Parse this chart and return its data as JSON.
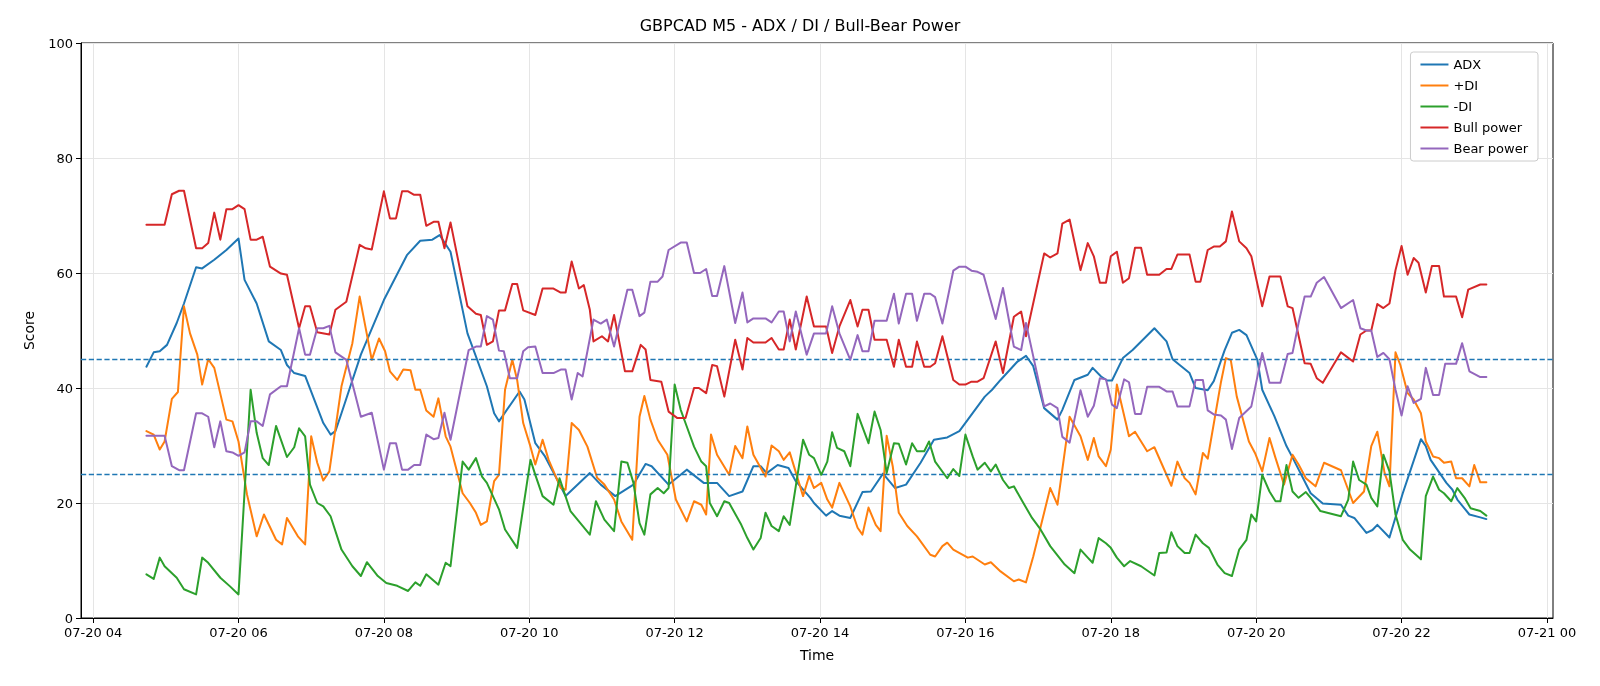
{
  "chart_data": {
    "type": "line",
    "title": "GBPCAD M5 - ADX / DI / Bull-Bear Power",
    "xlabel": "Time",
    "ylabel": "Score",
    "xlim": [
      "--07-20T03:50",
      "--07-21T00:05"
    ],
    "xticks": [
      {
        "value": "--07-20T04:00",
        "label": "07-20 04"
      },
      {
        "value": "--07-20T06:00",
        "label": "07-20 06"
      },
      {
        "value": "--07-20T08:00",
        "label": "07-20 08"
      },
      {
        "value": "--07-20T10:00",
        "label": "07-20 10"
      },
      {
        "value": "--07-20T12:00",
        "label": "07-20 12"
      },
      {
        "value": "--07-20T14:00",
        "label": "07-20 14"
      },
      {
        "value": "--07-20T16:00",
        "label": "07-20 16"
      },
      {
        "value": "--07-20T18:00",
        "label": "07-20 18"
      },
      {
        "value": "--07-20T20:00",
        "label": "07-20 20"
      },
      {
        "value": "--07-20T22:00",
        "label": "07-20 22"
      },
      {
        "value": "--07-21T00:00",
        "label": "07-21 00"
      }
    ],
    "ylim": [
      0,
      100
    ],
    "yticks": [
      0,
      20,
      40,
      60,
      80,
      100
    ],
    "grid": true,
    "legend": "top right",
    "marker": "none",
    "line_style": "solid",
    "ref_lines": [
      {
        "axis": "y",
        "value": 45,
        "color": "#1f77b4",
        "line_style": "dashed"
      },
      {
        "axis": "y",
        "value": 25,
        "color": "#1f77b4",
        "line_style": "dashed"
      }
    ],
    "series": [
      {
        "name": "ADX",
        "color": "#1f77b4",
        "x": [
          "--07-20T04:44",
          "--07-20T04:50",
          "--07-20T04:55",
          "--07-20T05:01",
          "--07-20T05:09",
          "--07-20T05:15",
          "--07-20T05:25",
          "--07-20T05:30",
          "--07-20T05:40",
          "--07-20T05:50",
          "--07-20T06:00",
          "--07-20T06:05",
          "--07-20T06:15",
          "--07-20T06:25",
          "--07-20T06:35",
          "--07-20T06:40",
          "--07-20T06:46",
          "--07-20T06:55",
          "--07-20T07:10",
          "--07-20T07:16",
          "--07-20T07:20",
          "--07-20T07:25",
          "--07-20T07:41",
          "--07-20T08:00",
          "--07-20T08:19",
          "--07-20T08:30",
          "--07-20T08:40",
          "--07-20T08:46",
          "--07-20T08:55",
          "--07-20T09:09",
          "--07-20T09:25",
          "--07-20T09:31",
          "--07-20T09:35",
          "--07-20T09:52",
          "--07-20T09:56",
          "--07-20T10:05",
          "--07-20T10:13",
          "--07-20T10:23",
          "--07-20T10:30",
          "--07-20T10:40",
          "--07-20T10:50",
          "--07-20T10:59",
          "--07-20T11:11",
          "--07-20T11:26",
          "--07-20T11:36",
          "--07-20T11:41",
          "--07-20T11:55",
          "--07-20T12:10",
          "--07-20T12:24",
          "--07-20T12:35",
          "--07-20T12:45",
          "--07-20T12:56",
          "--07-20T13:05",
          "--07-20T13:11",
          "--07-20T13:16",
          "--07-20T13:25",
          "--07-20T13:34",
          "--07-20T13:40",
          "--07-20T13:52",
          "--07-20T13:55",
          "--07-20T14:05",
          "--07-20T14:10",
          "--07-20T14:16",
          "--07-20T14:25",
          "--07-20T14:35",
          "--07-20T14:42",
          "--07-20T14:52",
          "--07-20T15:02",
          "--07-20T15:11",
          "--07-20T15:23",
          "--07-20T15:34",
          "--07-20T15:45",
          "--07-20T15:55",
          "--07-20T16:02",
          "--07-20T16:16",
          "--07-20T16:22",
          "--07-20T16:29",
          "--07-20T16:43",
          "--07-20T16:50",
          "--07-20T16:56",
          "--07-20T17:05",
          "--07-20T17:16",
          "--07-20T17:20",
          "--07-20T17:30",
          "--07-20T17:41",
          "--07-20T17:45",
          "--07-20T17:52",
          "--07-20T17:57",
          "--07-20T18:01",
          "--07-20T18:10",
          "--07-20T18:18",
          "--07-20T18:36",
          "--07-20T18:46",
          "--07-20T18:51",
          "--07-20T19:05",
          "--07-20T19:10",
          "--07-20T19:20",
          "--07-20T19:25",
          "--07-20T19:34",
          "--07-20T19:40",
          "--07-20T19:46",
          "--07-20T19:52",
          "--07-20T20:01",
          "--07-20T20:05",
          "--07-20T20:15",
          "--07-20T20:25",
          "--07-20T20:31",
          "--07-20T20:45",
          "--07-20T20:55",
          "--07-20T21:10",
          "--07-20T21:16",
          "--07-20T21:21",
          "--07-20T21:31",
          "--07-20T21:36",
          "--07-20T21:40",
          "--07-20T21:50",
          "--07-20T22:01",
          "--07-20T22:16",
          "--07-20T22:20",
          "--07-20T22:24",
          "--07-20T22:37",
          "--07-20T22:42",
          "--07-20T22:46",
          "--07-20T22:56",
          "--07-20T23:05",
          "--07-20T23:10"
        ],
        "values": [
          43.7,
          46.2,
          46.4,
          47.5,
          51.3,
          54.7,
          61.0,
          60.8,
          62.3,
          64.0,
          66.0,
          58.8,
          54.7,
          48.1,
          46.6,
          44.0,
          42.6,
          42.1,
          33.9,
          31.9,
          32.5,
          35.6,
          45.8,
          55.3,
          63.1,
          65.6,
          65.8,
          66.6,
          63.7,
          49.5,
          40.3,
          35.6,
          34.2,
          39.4,
          38.0,
          30.4,
          28.1,
          24.1,
          21.2,
          23.2,
          25.2,
          23.2,
          21.2,
          23.2,
          26.8,
          26.4,
          23.2,
          25.8,
          23.5,
          23.5,
          21.2,
          22.0,
          26.4,
          26.4,
          25.2,
          26.6,
          26.1,
          23.8,
          20.9,
          20.0,
          17.8,
          18.6,
          17.8,
          17.4,
          21.9,
          22.0,
          25.1,
          22.6,
          23.2,
          27.0,
          31.0,
          31.4,
          32.5,
          34.5,
          38.5,
          39.7,
          41.4,
          44.6,
          45.6,
          43.8,
          36.5,
          34.5,
          36.2,
          41.4,
          42.3,
          43.5,
          42.0,
          41.3,
          41.3,
          45.2,
          46.6,
          50.4,
          48.1,
          45.0,
          42.6,
          40.0,
          39.6,
          41.2,
          46.6,
          49.6,
          50.1,
          49.2,
          44.9,
          39.7,
          35.1,
          29.9,
          27.5,
          21.7,
          19.9,
          19.7,
          17.8,
          17.4,
          14.8,
          15.3,
          16.2,
          14.0,
          21.7,
          31.1,
          29.9,
          27.5,
          23.5,
          22.3,
          20.6,
          18.0,
          17.5,
          17.2
        ]
      },
      {
        "name": "+DI",
        "color": "#ff7f0e",
        "x": [
          "--07-20T04:44",
          "--07-20T04:50",
          "--07-20T04:55",
          "--07-20T04:59",
          "--07-20T05:05",
          "--07-20T05:10",
          "--07-20T05:15",
          "--07-20T05:20",
          "--07-20T05:26",
          "--07-20T05:30",
          "--07-20T05:35",
          "--07-20T05:40",
          "--07-20T05:50",
          "--07-20T05:55",
          "--07-20T06:00",
          "--07-20T06:07",
          "--07-20T06:15",
          "--07-20T06:21",
          "--07-20T06:31",
          "--07-20T06:36",
          "--07-20T06:40",
          "--07-20T06:49",
          "--07-20T06:55",
          "--07-20T07:00",
          "--07-20T07:05",
          "--07-20T07:10",
          "--07-20T07:15",
          "--07-20T07:25",
          "--07-20T07:34",
          "--07-20T07:40",
          "--07-20T07:50",
          "--07-20T07:56",
          "--07-20T08:01",
          "--07-20T08:05",
          "--07-20T08:11",
          "--07-20T08:16",
          "--07-20T08:22",
          "--07-20T08:26",
          "--07-20T08:30",
          "--07-20T08:35",
          "--07-20T08:41",
          "--07-20T08:45",
          "--07-20T08:51",
          "--07-20T08:55",
          "--07-20T09:05",
          "--07-20T09:11",
          "--07-20T09:16",
          "--07-20T09:20",
          "--07-20T09:25",
          "--07-20T09:31",
          "--07-20T09:35",
          "--07-20T09:40",
          "--07-20T09:46",
          "--07-20T09:50",
          "--07-20T09:55",
          "--07-20T10:01",
          "--07-20T10:05",
          "--07-20T10:11",
          "--07-20T10:16",
          "--07-20T10:26",
          "--07-20T10:30",
          "--07-20T10:35",
          "--07-20T10:41",
          "--07-20T10:48",
          "--07-20T10:56",
          "--07-20T11:02",
          "--07-20T11:10",
          "--07-20T11:16",
          "--07-20T11:25",
          "--07-20T11:31",
          "--07-20T11:35",
          "--07-20T11:40",
          "--07-20T11:46",
          "--07-20T11:54",
          "--07-20T12:01",
          "--07-20T12:10",
          "--07-20T12:16",
          "--07-20T12:22",
          "--07-20T12:26",
          "--07-20T12:30",
          "--07-20T12:35",
          "--07-20T12:45",
          "--07-20T12:50",
          "--07-20T12:56",
          "--07-20T13:00",
          "--07-20T13:05",
          "--07-20T13:15",
          "--07-20T13:20",
          "--07-20T13:26",
          "--07-20T13:30",
          "--07-20T13:35",
          "--07-20T13:46",
          "--07-20T13:51",
          "--07-20T13:55",
          "--07-20T14:01",
          "--07-20T14:06",
          "--07-20T14:10",
          "--07-20T14:16",
          "--07-20T14:25",
          "--07-20T14:31",
          "--07-20T14:35",
          "--07-20T14:40",
          "--07-20T14:46",
          "--07-20T14:50",
          "--07-20T14:55",
          "--07-20T15:00",
          "--07-20T15:05",
          "--07-20T15:12",
          "--07-20T15:20",
          "--07-20T15:31",
          "--07-20T15:35",
          "--07-20T15:41",
          "--07-20T15:45",
          "--07-20T15:50",
          "--07-20T16:02",
          "--07-20T16:06",
          "--07-20T16:16",
          "--07-20T16:21",
          "--07-20T16:29",
          "--07-20T16:40",
          "--07-20T16:44",
          "--07-20T16:50",
          "--07-20T16:56",
          "--07-20T17:10",
          "--07-20T17:16",
          "--07-20T17:26",
          "--07-20T17:35",
          "--07-20T17:41",
          "--07-20T17:46",
          "--07-20T17:50",
          "--07-20T17:56",
          "--07-20T18:00",
          "--07-20T18:05",
          "--07-20T18:15",
          "--07-20T18:20",
          "--07-20T18:30",
          "--07-20T18:36",
          "--07-20T18:50",
          "--07-20T18:55",
          "--07-20T19:01",
          "--07-20T19:05",
          "--07-20T19:10",
          "--07-20T19:16",
          "--07-20T19:20",
          "--07-20T19:31",
          "--07-20T19:35",
          "--07-20T19:39",
          "--07-20T19:44",
          "--07-20T19:54",
          "--07-20T19:59",
          "--07-20T20:05",
          "--07-20T20:11",
          "--07-20T20:16",
          "--07-20T20:23",
          "--07-20T20:30",
          "--07-20T20:35",
          "--07-20T20:41",
          "--07-20T20:49",
          "--07-20T20:56",
          "--07-20T21:10",
          "--07-20T21:20",
          "--07-20T21:29",
          "--07-20T21:35",
          "--07-20T21:40",
          "--07-20T21:46",
          "--07-20T21:50",
          "--07-20T21:55",
          "--07-20T21:59",
          "--07-20T22:05",
          "--07-20T22:10",
          "--07-20T22:16",
          "--07-20T22:20",
          "--07-20T22:26",
          "--07-20T22:31",
          "--07-20T22:35",
          "--07-20T22:41",
          "--07-20T22:45",
          "--07-20T22:50",
          "--07-20T22:56",
          "--07-20T23:00",
          "--07-20T23:05",
          "--07-20T23:10"
        ],
        "values": [
          32.5,
          31.9,
          29.3,
          30.7,
          38.1,
          39.3,
          54.2,
          49.5,
          45.8,
          40.6,
          45.0,
          43.5,
          34.5,
          34.2,
          30.7,
          21.5,
          14.2,
          18.0,
          13.6,
          12.8,
          17.4,
          14.2,
          12.8,
          31.6,
          27.0,
          23.9,
          25.5,
          40.3,
          47.8,
          55.9,
          44.9,
          48.6,
          46.4,
          42.9,
          41.4,
          43.2,
          43.1,
          39.7,
          39.7,
          36.1,
          35.0,
          38.2,
          31.6,
          29.8,
          21.7,
          20.0,
          18.3,
          16.2,
          16.8,
          23.8,
          24.9,
          39.7,
          44.9,
          41.4,
          33.9,
          29.8,
          26.7,
          31.0,
          27.5,
          22.6,
          22.3,
          33.9,
          32.7,
          29.8,
          24.4,
          23.2,
          20.6,
          16.8,
          13.6,
          35.0,
          38.6,
          34.5,
          31.0,
          28.4,
          20.6,
          16.8,
          20.3,
          19.7,
          18.0,
          31.9,
          28.4,
          24.9,
          29.9,
          27.8,
          33.3,
          28.4,
          24.6,
          30.0,
          29.0,
          27.5,
          28.8,
          21.2,
          24.7,
          22.6,
          23.5,
          20.6,
          19.2,
          23.5,
          19.4,
          15.7,
          14.5,
          19.2,
          16.2,
          15.1,
          31.7,
          26.4,
          18.3,
          16.0,
          14.2,
          11.0,
          10.7,
          12.5,
          13.1,
          11.9,
          10.5,
          10.7,
          9.3,
          9.7,
          8.1,
          6.4,
          6.7,
          6.2,
          10.7,
          22.6,
          19.7,
          35.0,
          31.6,
          27.5,
          31.3,
          28.1,
          26.4,
          29.3,
          40.6,
          31.6,
          32.4,
          29.0,
          29.7,
          23.0,
          27.2,
          24.3,
          23.5,
          21.5,
          28.7,
          27.7,
          41.1,
          45.2,
          44.9,
          38.5,
          30.7,
          28.7,
          25.5,
          31.3,
          27.8,
          23.2,
          28.4,
          26.7,
          24.3,
          22.9,
          27.0,
          25.7,
          20.0,
          22.0,
          29.9,
          32.4,
          25.2,
          22.9,
          46.2,
          44.0,
          39.1,
          38.0,
          35.6,
          30.7,
          28.1,
          27.8,
          27.0,
          27.2,
          24.3,
          24.3,
          22.9,
          26.6,
          23.6,
          23.6
        ]
      },
      {
        "name": "-DI",
        "color": "#2ca02c",
        "x": [
          "--07-20T04:44",
          "--07-20T04:50",
          "--07-20T04:55",
          "--07-20T04:59",
          "--07-20T05:09",
          "--07-20T05:15",
          "--07-20T05:25",
          "--07-20T05:30",
          "--07-20T05:35",
          "--07-20T05:45",
          "--07-20T05:53",
          "--07-20T06:00",
          "--07-20T06:10",
          "--07-20T06:15",
          "--07-20T06:20",
          "--07-20T06:25",
          "--07-20T06:31",
          "--07-20T06:40",
          "--07-20T06:46",
          "--07-20T06:50",
          "--07-20T06:55",
          "--07-20T06:59",
          "--07-20T07:05",
          "--07-20T07:10",
          "--07-20T07:16",
          "--07-20T07:25",
          "--07-20T07:34",
          "--07-20T07:41",
          "--07-20T07:46",
          "--07-20T07:55",
          "--07-20T08:02",
          "--07-20T08:11",
          "--07-20T08:20",
          "--07-20T08:26",
          "--07-20T08:30",
          "--07-20T08:35",
          "--07-20T08:45",
          "--07-20T08:51",
          "--07-20T08:55",
          "--07-20T09:05",
          "--07-20T09:10",
          "--07-20T09:16",
          "--07-20T09:21",
          "--07-20T09:25",
          "--07-20T09:35",
          "--07-20T09:40",
          "--07-20T09:50",
          "--07-20T10:01",
          "--07-20T10:05",
          "--07-20T10:11",
          "--07-20T10:20",
          "--07-20T10:25",
          "--07-20T10:34",
          "--07-20T10:50",
          "--07-20T10:55",
          "--07-20T11:02",
          "--07-20T11:10",
          "--07-20T11:16",
          "--07-20T11:21",
          "--07-20T11:26",
          "--07-20T11:31",
          "--07-20T11:35",
          "--07-20T11:40",
          "--07-20T11:46",
          "--07-20T11:51",
          "--07-20T11:55",
          "--07-20T12:00",
          "--07-20T12:05",
          "--07-20T12:10",
          "--07-20T12:16",
          "--07-20T12:22",
          "--07-20T12:26",
          "--07-20T12:29",
          "--07-20T12:35",
          "--07-20T12:41",
          "--07-20T12:45",
          "--07-20T12:55",
          "--07-20T13:00",
          "--07-20T13:05",
          "--07-20T13:11",
          "--07-20T13:15",
          "--07-20T13:20",
          "--07-20T13:26",
          "--07-20T13:30",
          "--07-20T13:35",
          "--07-20T13:46",
          "--07-20T13:51",
          "--07-20T13:55",
          "--07-20T14:01",
          "--07-20T14:06",
          "--07-20T14:10",
          "--07-20T14:14",
          "--07-20T14:20",
          "--07-20T14:25",
          "--07-20T14:31",
          "--07-20T14:40",
          "--07-20T14:45",
          "--07-20T14:50",
          "--07-20T14:55",
          "--07-20T15:01",
          "--07-20T15:05",
          "--07-20T15:11",
          "--07-20T15:16",
          "--07-20T15:20",
          "--07-20T15:26",
          "--07-20T15:30",
          "--07-20T15:35",
          "--07-20T15:45",
          "--07-20T15:50",
          "--07-20T15:55",
          "--07-20T16:00",
          "--07-20T16:06",
          "--07-20T16:10",
          "--07-20T16:16",
          "--07-20T16:21",
          "--07-20T16:25",
          "--07-20T16:31",
          "--07-20T16:36",
          "--07-20T16:40",
          "--07-20T16:47",
          "--07-20T16:55",
          "--07-20T17:02",
          "--07-20T17:10",
          "--07-20T17:22",
          "--07-20T17:30",
          "--07-20T17:35",
          "--07-20T17:41",
          "--07-20T17:45",
          "--07-20T17:50",
          "--07-20T17:56",
          "--07-20T18:00",
          "--07-20T18:05",
          "--07-20T18:11",
          "--07-20T18:16",
          "--07-20T18:25",
          "--07-20T18:36",
          "--07-20T18:40",
          "--07-20T18:46",
          "--07-20T18:50",
          "--07-20T18:55",
          "--07-20T19:01",
          "--07-20T19:05",
          "--07-20T19:10",
          "--07-20T19:16",
          "--07-20T19:21",
          "--07-20T19:28",
          "--07-20T19:34",
          "--07-20T19:40",
          "--07-20T19:46",
          "--07-20T19:52",
          "--07-20T19:56",
          "--07-20T20:00",
          "--07-20T20:05",
          "--07-20T20:11",
          "--07-20T20:16",
          "--07-20T20:20",
          "--07-20T20:25",
          "--07-20T20:30",
          "--07-20T20:35",
          "--07-20T20:41",
          "--07-20T20:45",
          "--07-20T20:53",
          "--07-20T21:10",
          "--07-20T21:16",
          "--07-20T21:20",
          "--07-20T21:25",
          "--07-20T21:31",
          "--07-20T21:35",
          "--07-20T21:40",
          "--07-20T21:45",
          "--07-20T21:50",
          "--07-20T21:55",
          "--07-20T22:01",
          "--07-20T22:07",
          "--07-20T22:16",
          "--07-20T22:20",
          "--07-20T22:26",
          "--07-20T22:31",
          "--07-20T22:35",
          "--07-20T22:41",
          "--07-20T22:46",
          "--07-20T22:52",
          "--07-20T22:57",
          "--07-20T23:05",
          "--07-20T23:10"
        ],
        "values": [
          7.6,
          6.8,
          10.5,
          9.0,
          7.0,
          5.0,
          4.1,
          10.5,
          9.6,
          7.0,
          5.5,
          4.1,
          39.7,
          32.2,
          27.8,
          26.6,
          33.4,
          28.0,
          29.7,
          33.0,
          31.6,
          23.2,
          20.0,
          19.4,
          17.7,
          11.9,
          9.0,
          7.3,
          9.7,
          7.3,
          6.1,
          5.6,
          4.7,
          6.2,
          5.6,
          7.6,
          5.8,
          9.6,
          9.0,
          27.2,
          25.8,
          27.8,
          24.6,
          23.5,
          18.9,
          15.4,
          12.2,
          27.5,
          24.9,
          21.2,
          19.7,
          24.3,
          18.6,
          14.5,
          20.3,
          17.1,
          15.1,
          27.2,
          27.0,
          23.5,
          16.5,
          14.5,
          21.5,
          22.6,
          21.7,
          22.6,
          40.6,
          36.2,
          33.3,
          29.8,
          27.2,
          26.4,
          20.0,
          17.7,
          20.3,
          20.0,
          16.2,
          13.9,
          11.9,
          13.9,
          18.3,
          16.0,
          15.1,
          17.7,
          16.2,
          31.0,
          28.4,
          27.8,
          24.9,
          27.2,
          32.3,
          29.6,
          29.0,
          26.4,
          35.5,
          30.4,
          35.9,
          32.7,
          25.2,
          30.4,
          30.3,
          26.7,
          30.4,
          29.0,
          29.0,
          30.7,
          27.2,
          24.3,
          25.9,
          24.7,
          31.9,
          28.1,
          25.8,
          27.0,
          25.5,
          26.7,
          24.0,
          22.6,
          22.9,
          20.3,
          17.4,
          15.4,
          12.5,
          9.3,
          7.8,
          11.9,
          10.5,
          9.6,
          13.9,
          13.0,
          12.2,
          10.5,
          9.0,
          9.9,
          9.0,
          7.4,
          11.3,
          11.4,
          14.9,
          12.5,
          11.3,
          11.3,
          14.5,
          13.0,
          12.2,
          9.3,
          7.8,
          7.3,
          11.9,
          13.6,
          18.0,
          16.8,
          24.9,
          22.0,
          20.3,
          20.3,
          26.6,
          22.0,
          20.9,
          21.9,
          20.9,
          18.6,
          17.7,
          20.6,
          27.2,
          24.0,
          23.2,
          20.9,
          19.4,
          28.4,
          25.5,
          18.0,
          13.6,
          11.9,
          10.2,
          21.2,
          24.6,
          22.3,
          21.7,
          20.3,
          22.6,
          20.9,
          19.1,
          18.6,
          17.8
        ]
      },
      {
        "name": "Bull power",
        "color": "#d62728",
        "x": [
          "--07-20T04:44",
          "--07-20T04:59",
          "--07-20T05:05",
          "--07-20T05:11",
          "--07-20T05:15",
          "--07-20T05:25",
          "--07-20T05:30",
          "--07-20T05:35",
          "--07-20T05:40",
          "--07-20T05:45",
          "--07-20T05:50",
          "--07-20T05:55",
          "--07-20T06:00",
          "--07-20T06:05",
          "--07-20T06:10",
          "--07-20T06:15",
          "--07-20T06:20",
          "--07-20T06:26",
          "--07-20T06:35",
          "--07-20T06:40",
          "--07-20T06:50",
          "--07-20T06:55",
          "--07-20T06:59",
          "--07-20T07:05",
          "--07-20T07:15",
          "--07-20T07:20",
          "--07-20T07:29",
          "--07-20T07:40",
          "--07-20T07:45",
          "--07-20T07:50",
          "--07-20T08:00",
          "--07-20T08:05",
          "--07-20T08:10",
          "--07-20T08:15",
          "--07-20T08:20",
          "--07-20T08:25",
          "--07-20T08:30",
          "--07-20T08:35",
          "--07-20T08:41",
          "--07-20T08:45",
          "--07-20T08:50",
          "--07-20T08:55",
          "--07-20T09:09",
          "--07-20T09:16",
          "--07-20T09:20",
          "--07-20T09:25",
          "--07-20T09:30",
          "--07-20T09:35",
          "--07-20T09:40",
          "--07-20T09:46",
          "--07-20T09:50",
          "--07-20T09:55",
          "--07-20T10:05",
          "--07-20T10:11",
          "--07-20T10:20",
          "--07-20T10:26",
          "--07-20T10:30",
          "--07-20T10:35",
          "--07-20T10:41",
          "--07-20T10:45",
          "--07-20T10:50",
          "--07-20T10:53",
          "--07-20T11:00",
          "--07-20T11:05",
          "--07-20T11:10",
          "--07-20T11:19",
          "--07-20T11:25",
          "--07-20T11:32",
          "--07-20T11:36",
          "--07-20T11:40",
          "--07-20T11:49",
          "--07-20T11:55",
          "--07-20T12:02",
          "--07-20T12:09",
          "--07-20T12:16",
          "--07-20T12:20",
          "--07-20T12:26",
          "--07-20T12:31",
          "--07-20T12:35",
          "--07-20T12:41",
          "--07-20T12:50",
          "--07-20T12:56",
          "--07-20T13:00",
          "--07-20T13:05",
          "--07-20T13:15",
          "--07-20T13:20",
          "--07-20T13:26",
          "--07-20T13:30",
          "--07-20T13:35",
          "--07-20T13:40",
          "--07-20T13:49",
          "--07-20T13:55",
          "--07-20T14:05",
          "--07-20T14:10",
          "--07-20T14:16",
          "--07-20T14:25",
          "--07-20T14:31",
          "--07-20T14:35",
          "--07-20T14:40",
          "--07-20T14:45",
          "--07-20T14:55",
          "--07-20T15:01",
          "--07-20T15:05",
          "--07-20T15:11",
          "--07-20T15:16",
          "--07-20T15:20",
          "--07-20T15:26",
          "--07-20T15:31",
          "--07-20T15:35",
          "--07-20T15:41",
          "--07-20T15:50",
          "--07-20T15:55",
          "--07-20T16:00",
          "--07-20T16:05",
          "--07-20T16:10",
          "--07-20T16:15",
          "--07-20T16:25",
          "--07-20T16:31",
          "--07-20T16:40",
          "--07-20T16:46",
          "--07-20T16:50",
          "--07-20T17:05",
          "--07-20T17:10",
          "--07-20T17:16",
          "--07-20T17:20",
          "--07-20T17:26",
          "--07-20T17:35",
          "--07-20T17:41",
          "--07-20T17:46",
          "--07-20T17:51",
          "--07-20T17:56",
          "--07-20T18:00",
          "--07-20T18:05",
          "--07-20T18:10",
          "--07-20T18:15",
          "--07-20T18:20",
          "--07-20T18:25",
          "--07-20T18:30",
          "--07-20T18:40",
          "--07-20T18:46",
          "--07-20T18:50",
          "--07-20T18:55",
          "--07-20T19:05",
          "--07-20T19:10",
          "--07-20T19:14",
          "--07-20T19:20",
          "--07-20T19:25",
          "--07-20T19:30",
          "--07-20T19:35",
          "--07-20T19:40",
          "--07-20T19:46",
          "--07-20T19:52",
          "--07-20T19:56",
          "--07-20T20:05",
          "--07-20T20:11",
          "--07-20T20:20",
          "--07-20T20:26",
          "--07-20T20:30",
          "--07-20T20:40",
          "--07-20T20:45",
          "--07-20T20:50",
          "--07-20T20:55",
          "--07-20T21:10",
          "--07-20T21:20",
          "--07-20T21:26",
          "--07-20T21:31",
          "--07-20T21:35",
          "--07-20T21:40",
          "--07-20T21:45",
          "--07-20T21:50",
          "--07-20T21:55",
          "--07-20T22:00",
          "--07-20T22:05",
          "--07-20T22:10",
          "--07-20T22:14",
          "--07-20T22:20",
          "--07-20T22:25",
          "--07-20T22:31",
          "--07-20T22:35",
          "--07-20T22:45",
          "--07-20T22:50",
          "--07-20T22:55",
          "--07-20T23:05",
          "--07-20T23:10"
        ],
        "values": [
          68.4,
          68.4,
          73.7,
          74.3,
          74.3,
          64.3,
          64.3,
          65.2,
          70.5,
          65.8,
          71.1,
          71.1,
          71.8,
          71.1,
          65.8,
          65.8,
          66.3,
          61.1,
          59.9,
          59.7,
          50.4,
          54.2,
          54.2,
          49.7,
          49.3,
          53.6,
          55.0,
          64.9,
          64.3,
          64.1,
          74.2,
          69.5,
          69.5,
          74.2,
          74.2,
          73.6,
          73.6,
          68.2,
          68.9,
          68.9,
          64.3,
          68.8,
          54.2,
          52.9,
          52.7,
          47.5,
          48.1,
          53.5,
          53.5,
          58.1,
          58.1,
          53.5,
          52.7,
          57.3,
          57.3,
          56.6,
          56.6,
          62.0,
          57.3,
          57.9,
          53.6,
          48.1,
          49.0,
          48.1,
          52.7,
          42.9,
          42.9,
          47.5,
          46.7,
          41.4,
          41.1,
          35.9,
          34.8,
          34.8,
          40.0,
          40.0,
          39.1,
          44.0,
          43.8,
          38.5,
          48.4,
          43.2,
          48.7,
          47.9,
          47.9,
          48.7,
          46.7,
          46.7,
          51.9,
          46.7,
          55.9,
          50.7,
          50.7,
          46.1,
          50.7,
          55.3,
          50.7,
          53.6,
          53.6,
          48.4,
          48.4,
          43.7,
          48.4,
          43.7,
          43.7,
          48.1,
          43.7,
          43.7,
          44.3,
          49.0,
          41.4,
          40.6,
          40.6,
          41.1,
          41.1,
          41.7,
          48.1,
          42.6,
          52.4,
          53.3,
          49.0,
          63.4,
          62.7,
          63.4,
          68.6,
          69.3,
          60.5,
          65.2,
          62.9,
          58.3,
          58.3,
          62.9,
          63.7,
          58.3,
          59.1,
          64.4,
          64.4,
          59.7,
          59.7,
          60.7,
          60.7,
          63.2,
          63.2,
          58.5,
          58.5,
          64.0,
          64.6,
          64.6,
          65.5,
          70.7,
          65.5,
          64.3,
          62.9,
          54.2,
          59.4,
          59.4,
          54.2,
          53.9,
          44.3,
          44.2,
          41.7,
          40.9,
          46.2,
          44.6,
          49.3,
          50.0,
          50.0,
          54.6,
          53.9,
          54.7,
          60.5,
          64.7,
          59.7,
          62.6,
          61.8,
          56.6,
          61.2,
          61.2,
          55.9,
          55.9,
          52.3,
          57.1,
          58.0,
          58.0
        ]
      },
      {
        "name": "Bear power",
        "color": "#9467bd",
        "x": [
          "--07-20T04:44",
          "--07-20T04:59",
          "--07-20T05:05",
          "--07-20T05:11",
          "--07-20T05:15",
          "--07-20T05:25",
          "--07-20T05:30",
          "--07-20T05:35",
          "--07-20T05:40",
          "--07-20T05:45",
          "--07-20T05:50",
          "--07-20T05:55",
          "--07-20T06:00",
          "--07-20T06:05",
          "--07-20T06:10",
          "--07-20T06:15",
          "--07-20T06:20",
          "--07-20T06:26",
          "--07-20T06:35",
          "--07-20T06:40",
          "--07-20T06:50",
          "--07-20T06:55",
          "--07-20T06:59",
          "--07-20T07:05",
          "--07-20T07:10",
          "--07-20T07:15",
          "--07-20T07:20",
          "--07-20T07:29",
          "--07-20T07:41",
          "--07-20T07:50",
          "--07-20T08:00",
          "--07-20T08:05",
          "--07-20T08:10",
          "--07-20T08:15",
          "--07-20T08:20",
          "--07-20T08:25",
          "--07-20T08:30",
          "--07-20T08:35",
          "--07-20T08:41",
          "--07-20T08:45",
          "--07-20T08:50",
          "--07-20T08:55",
          "--07-20T09:10",
          "--07-20T09:16",
          "--07-20T09:20",
          "--07-20T09:25",
          "--07-20T09:30",
          "--07-20T09:35",
          "--07-20T09:39",
          "--07-20T09:44",
          "--07-20T09:50",
          "--07-20T09:55",
          "--07-20T09:59",
          "--07-20T10:05",
          "--07-20T10:11",
          "--07-20T10:20",
          "--07-20T10:26",
          "--07-20T10:30",
          "--07-20T10:35",
          "--07-20T10:40",
          "--07-20T10:44",
          "--07-20T10:53",
          "--07-20T10:59",
          "--07-20T11:04",
          "--07-20T11:10",
          "--07-20T11:21",
          "--07-20T11:25",
          "--07-20T11:31",
          "--07-20T11:35",
          "--07-20T11:40",
          "--07-20T11:46",
          "--07-20T11:50",
          "--07-20T11:55",
          "--07-20T12:05",
          "--07-20T12:10",
          "--07-20T12:16",
          "--07-20T12:21",
          "--07-20T12:26",
          "--07-20T12:31",
          "--07-20T12:35",
          "--07-20T12:41",
          "--07-20T12:50",
          "--07-20T12:56",
          "--07-20T13:00",
          "--07-20T13:05",
          "--07-20T13:15",
          "--07-20T13:20",
          "--07-20T13:26",
          "--07-20T13:30",
          "--07-20T13:35",
          "--07-20T13:40",
          "--07-20T13:49",
          "--07-20T13:55",
          "--07-20T14:05",
          "--07-20T14:10",
          "--07-20T14:16",
          "--07-20T14:25",
          "--07-20T14:31",
          "--07-20T14:35",
          "--07-20T14:40",
          "--07-20T14:45",
          "--07-20T14:55",
          "--07-20T15:01",
          "--07-20T15:05",
          "--07-20T15:11",
          "--07-20T15:16",
          "--07-20T15:20",
          "--07-20T15:26",
          "--07-20T15:31",
          "--07-20T15:35",
          "--07-20T15:41",
          "--07-20T15:50",
          "--07-20T15:55",
          "--07-20T16:00",
          "--07-20T16:05",
          "--07-20T16:10",
          "--07-20T16:15",
          "--07-20T16:25",
          "--07-20T16:31",
          "--07-20T16:40",
          "--07-20T16:46",
          "--07-20T16:50",
          "--07-20T16:56",
          "--07-20T17:05",
          "--07-20T17:10",
          "--07-20T17:16",
          "--07-20T17:20",
          "--07-20T17:26",
          "--07-20T17:35",
          "--07-20T17:41",
          "--07-20T17:46",
          "--07-20T17:51",
          "--07-20T17:56",
          "--07-20T18:01",
          "--07-20T18:05",
          "--07-20T18:11",
          "--07-20T18:15",
          "--07-20T18:20",
          "--07-20T18:25",
          "--07-20T18:30",
          "--07-20T18:40",
          "--07-20T18:46",
          "--07-20T18:51",
          "--07-20T18:55",
          "--07-20T19:05",
          "--07-20T19:10",
          "--07-20T19:16",
          "--07-20T19:20",
          "--07-20T19:25",
          "--07-20T19:31",
          "--07-20T19:35",
          "--07-20T19:40",
          "--07-20T19:46",
          "--07-20T19:56",
          "--07-20T20:05",
          "--07-20T20:11",
          "--07-20T20:20",
          "--07-20T20:26",
          "--07-20T20:30",
          "--07-20T20:35",
          "--07-20T20:40",
          "--07-20T20:45",
          "--07-20T20:50",
          "--07-20T20:56",
          "--07-20T21:10",
          "--07-20T21:20",
          "--07-20T21:26",
          "--07-20T21:31",
          "--07-20T21:35",
          "--07-20T21:40",
          "--07-20T21:45",
          "--07-20T21:50",
          "--07-20T21:55",
          "--07-20T22:00",
          "--07-20T22:05",
          "--07-20T22:10",
          "--07-20T22:16",
          "--07-20T22:20",
          "--07-20T22:26",
          "--07-20T22:31",
          "--07-20T22:36",
          "--07-20T22:45",
          "--07-20T22:50",
          "--07-20T22:56",
          "--07-20T23:05",
          "--07-20T23:10"
        ],
        "values": [
          31.7,
          31.7,
          26.4,
          25.7,
          25.7,
          35.6,
          35.6,
          35.0,
          29.7,
          34.2,
          29.0,
          28.8,
          28.2,
          28.8,
          34.2,
          34.2,
          33.4,
          38.9,
          40.3,
          40.3,
          50.4,
          45.8,
          45.8,
          50.4,
          50.4,
          50.8,
          46.2,
          44.9,
          35.0,
          35.7,
          25.8,
          30.4,
          30.4,
          25.8,
          25.8,
          26.6,
          26.6,
          31.9,
          31.1,
          31.3,
          35.7,
          31.0,
          46.6,
          47.2,
          47.2,
          52.5,
          51.9,
          46.5,
          46.4,
          41.7,
          41.7,
          46.4,
          47.1,
          47.2,
          42.6,
          42.6,
          43.2,
          43.2,
          38.0,
          42.6,
          42.0,
          51.9,
          51.2,
          51.9,
          47.2,
          57.1,
          57.1,
          52.5,
          53.1,
          58.5,
          58.5,
          59.4,
          64.0,
          65.3,
          65.3,
          60.0,
          60.0,
          60.7,
          56.0,
          56.0,
          61.2,
          51.3,
          56.6,
          51.4,
          52.1,
          52.1,
          51.4,
          53.3,
          53.3,
          48.1,
          53.3,
          45.8,
          49.5,
          49.5,
          54.2,
          49.5,
          44.9,
          49.2,
          46.4,
          46.4,
          51.7,
          51.7,
          56.4,
          51.2,
          56.4,
          56.4,
          51.7,
          56.4,
          56.4,
          55.8,
          51.2,
          60.4,
          61.1,
          61.1,
          60.4,
          60.2,
          59.7,
          52.0,
          57.4,
          47.2,
          46.6,
          51.3,
          45.5,
          36.8,
          37.3,
          36.5,
          31.5,
          30.5,
          39.6,
          35.0,
          36.9,
          41.7,
          41.5,
          37.1,
          36.5,
          41.5,
          41.0,
          35.5,
          35.5,
          40.2,
          40.2,
          39.4,
          39.4,
          36.8,
          36.8,
          41.4,
          41.4,
          36.1,
          35.4,
          35.2,
          34.5,
          29.4,
          34.8,
          36.8,
          46.1,
          40.9,
          40.9,
          45.9,
          46.1,
          51.3,
          55.9,
          55.9,
          58.3,
          59.3,
          53.9,
          55.3,
          50.4,
          50.0,
          50.0,
          45.4,
          46.1,
          45.0,
          39.7,
          35.2,
          40.3,
          37.4,
          38.1,
          43.5,
          38.8,
          38.8,
          44.2,
          44.2,
          47.8,
          42.9,
          41.9,
          41.9
        ]
      }
    ]
  }
}
